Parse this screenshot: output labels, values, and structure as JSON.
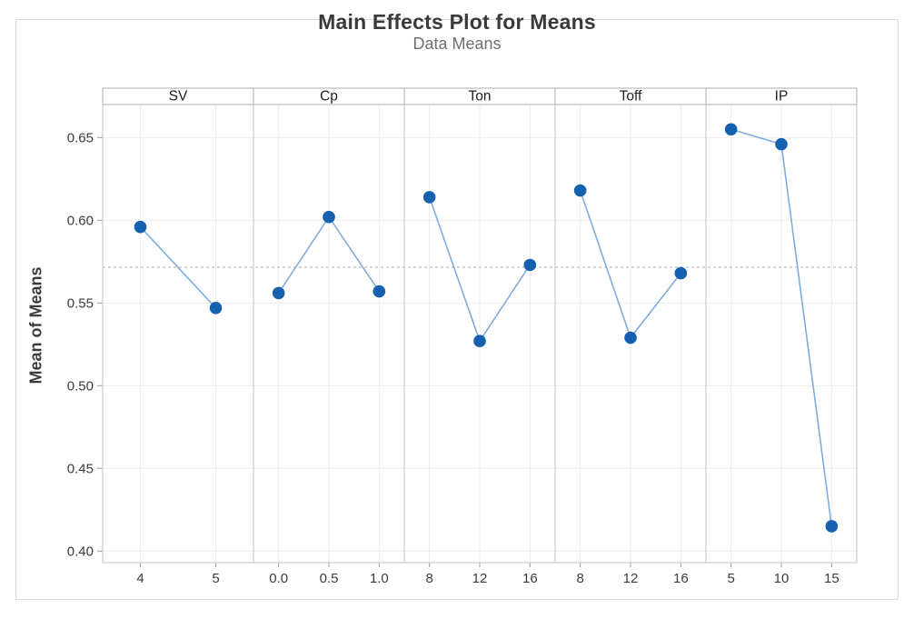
{
  "chart_data": {
    "type": "line",
    "title": "Main Effects Plot for Means",
    "subtitle": "Data Means",
    "ylabel": "Mean of Means",
    "xlabel": "",
    "ylim": [
      0.393,
      0.67
    ],
    "yticks": [
      0.4,
      0.45,
      0.5,
      0.55,
      0.6,
      0.65
    ],
    "reference_line": 0.5716,
    "grid": true,
    "legend": "none",
    "panels": [
      {
        "label": "SV",
        "categories": [
          "4",
          "5"
        ],
        "values": [
          0.596,
          0.547
        ]
      },
      {
        "label": "Cp",
        "categories": [
          "0.0",
          "0.5",
          "1.0"
        ],
        "values": [
          0.556,
          0.602,
          0.557
        ]
      },
      {
        "label": "Ton",
        "categories": [
          "8",
          "12",
          "16"
        ],
        "values": [
          0.614,
          0.527,
          0.573
        ]
      },
      {
        "label": "Toff",
        "categories": [
          "8",
          "12",
          "16"
        ],
        "values": [
          0.618,
          0.529,
          0.568
        ]
      },
      {
        "label": "IP",
        "categories": [
          "5",
          "10",
          "15"
        ],
        "values": [
          0.655,
          0.646,
          0.415
        ]
      }
    ],
    "colors": {
      "marker": "#1660b0",
      "line": "#7facdf",
      "reference": "#adadad",
      "grid": "#ededed",
      "panel_border": "#c3c3c3",
      "header_border": "#aeaeae",
      "tick": "#9c9c9c",
      "title": "#3a3a3a",
      "subtitle": "#6e6e6e",
      "tick_label": "#3c3c3c",
      "header_label": "#1f1f1f"
    }
  }
}
